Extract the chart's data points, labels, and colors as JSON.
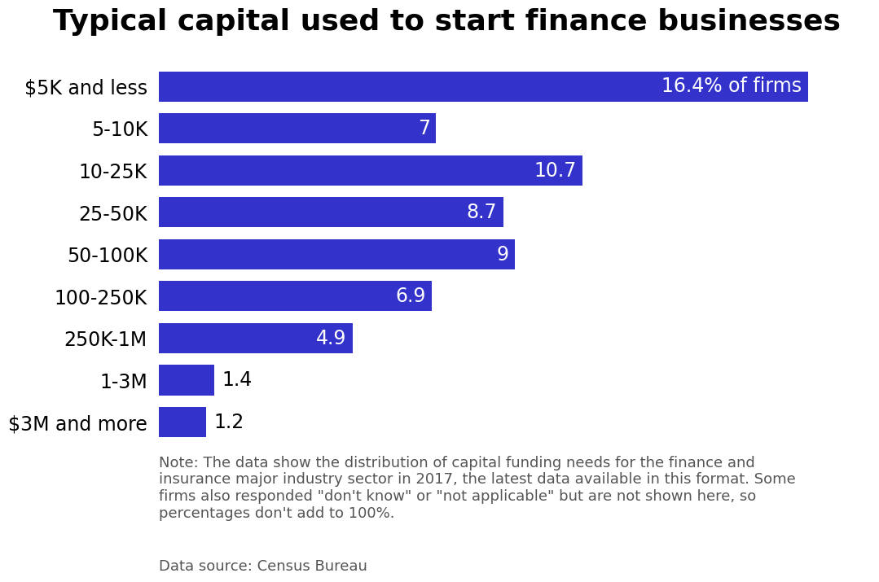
{
  "title": "Typical capital used to start finance businesses",
  "categories": [
    "$5K and less",
    "5-10K",
    "10-25K",
    "25-50K",
    "50-100K",
    "100-250K",
    "250K-1M",
    "1-3M",
    "$3M and more"
  ],
  "values": [
    16.4,
    7.0,
    10.7,
    8.7,
    9.0,
    6.9,
    4.9,
    1.4,
    1.2
  ],
  "labels": [
    "16.4% of firms",
    "7",
    "10.7",
    "8.7",
    "9",
    "6.9",
    "4.9",
    "1.4",
    "1.2"
  ],
  "bar_color": "#3333CC",
  "label_color_inside": "#FFFFFF",
  "label_color_outside": "#000000",
  "title_fontsize": 26,
  "label_fontsize": 17,
  "category_fontsize": 17,
  "note_text": "Note: The data show the distribution of capital funding needs for the finance and\ninsurance major industry sector in 2017, the latest data available in this format. Some\nfirms also responded \"don't know\" or \"not applicable\" but are not shown here, so\npercentages don't add to 100%.",
  "source_text": "Data source: Census Bureau",
  "note_fontsize": 13,
  "source_fontsize": 13,
  "xlim": [
    0,
    18
  ],
  "background_color": "#FFFFFF",
  "inside_label_threshold": 1.5
}
